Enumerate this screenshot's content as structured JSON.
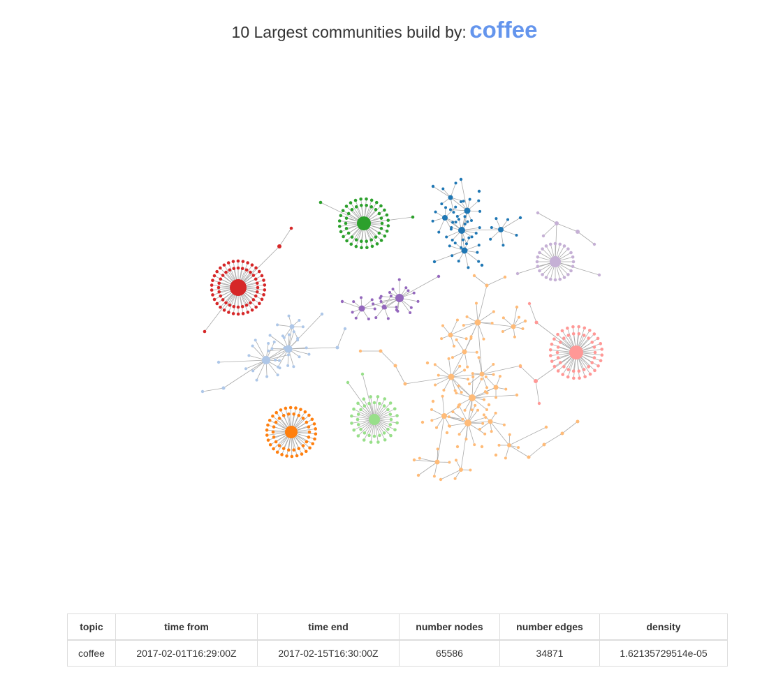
{
  "header": {
    "lead": "10 Largest communities build by:",
    "topic": "coffee",
    "topic_color": "#6495ed"
  },
  "graph": {
    "edge_color": "#aaaaaa",
    "communities": [
      {
        "id": "red",
        "color": "#d62728",
        "hub_size": "large",
        "member_count": 60,
        "layout": "ring"
      },
      {
        "id": "green",
        "color": "#2ca02c",
        "hub_size": "large",
        "member_count": 50,
        "layout": "ring"
      },
      {
        "id": "blue",
        "color": "#1f77b4",
        "hub_size": "small",
        "member_count": 45,
        "layout": "tree"
      },
      {
        "id": "lavender",
        "color": "#c5b0d5",
        "hub_size": "medium",
        "member_count": 32,
        "layout": "ring"
      },
      {
        "id": "purple",
        "color": "#9467bd",
        "hub_size": "small",
        "member_count": 30,
        "layout": "tree"
      },
      {
        "id": "light-blue",
        "color": "#aec7e8",
        "hub_size": "small",
        "member_count": 50,
        "layout": "tree"
      },
      {
        "id": "peach",
        "color": "#ffbb78",
        "hub_size": "small",
        "member_count": 170,
        "layout": "tree"
      },
      {
        "id": "pink",
        "color": "#ff9896",
        "hub_size": "large",
        "member_count": 52,
        "layout": "ring"
      },
      {
        "id": "light-green",
        "color": "#98df8a",
        "hub_size": "medium",
        "member_count": 40,
        "layout": "ring"
      },
      {
        "id": "orange",
        "color": "#ff7f0e",
        "hub_size": "medium",
        "member_count": 52,
        "layout": "ring"
      }
    ]
  },
  "table": {
    "headers": [
      "topic",
      "time from",
      "time end",
      "number nodes",
      "number edges",
      "density"
    ],
    "rows": [
      [
        "coffee",
        "2017-02-01T16:29:00Z",
        "2017-02-15T16:30:00Z",
        "65586",
        "34871",
        "1.62135729514e-05"
      ]
    ]
  }
}
